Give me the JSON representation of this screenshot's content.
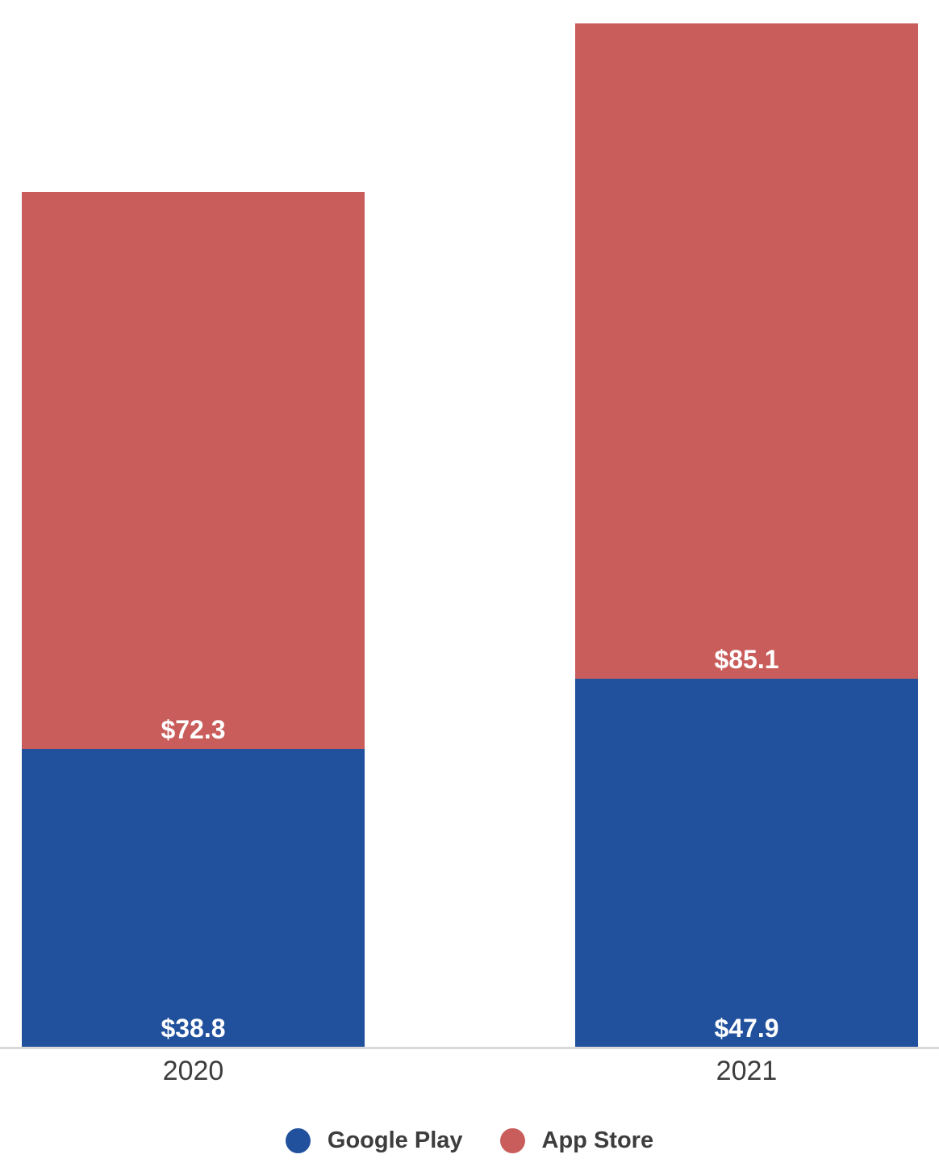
{
  "chart_data": {
    "type": "bar",
    "stacked": true,
    "title": "",
    "xlabel": "",
    "ylabel": "",
    "categories": [
      "2020",
      "2021"
    ],
    "series": [
      {
        "name": "Google Play",
        "color": "#21519C",
        "values": [
          38.8,
          47.9
        ],
        "value_labels": [
          "$38.8",
          "$47.9"
        ]
      },
      {
        "name": "App Store",
        "color": "#C95D5B",
        "values": [
          72.3,
          85.1
        ],
        "value_labels": [
          "$72.3",
          "$85.1"
        ]
      }
    ],
    "totals": [
      111.1,
      133.0
    ],
    "ylim": [
      0,
      136
    ],
    "grid": false,
    "y_axis_visible": false,
    "legend_position": "bottom",
    "value_label_position": "inside-bottom",
    "colors": {
      "value_label": "#FFFFFF",
      "axis_line": "#D9D9D9",
      "tick_label": "#3D3D3D",
      "legend_label": "#3D3D3D",
      "background": "#FFFFFF"
    }
  }
}
